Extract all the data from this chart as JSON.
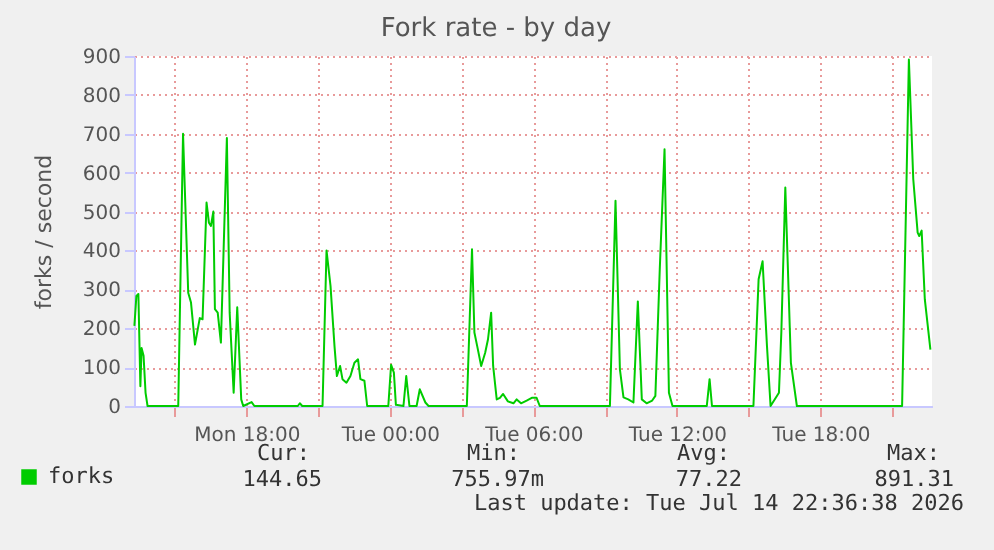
{
  "chart_data": {
    "type": "line",
    "title": "Fork rate - by day",
    "ylabel": "forks / second",
    "xlim": [
      "2026-07-13T13:18",
      "2026-07-14T22:40"
    ],
    "xticks": [
      {
        "value": "2026-07-13T15:00",
        "label": null
      },
      {
        "value": "2026-07-13T18:00",
        "label": "Mon 18:00"
      },
      {
        "value": "2026-07-13T21:00",
        "label": null
      },
      {
        "value": "2026-07-14T00:00",
        "label": "Tue 00:00"
      },
      {
        "value": "2026-07-14T03:00",
        "label": null
      },
      {
        "value": "2026-07-14T06:00",
        "label": "Tue 06:00"
      },
      {
        "value": "2026-07-14T09:00",
        "label": null
      },
      {
        "value": "2026-07-14T12:00",
        "label": "Tue 12:00"
      },
      {
        "value": "2026-07-14T15:00",
        "label": null
      },
      {
        "value": "2026-07-14T18:00",
        "label": "Tue 18:00"
      },
      {
        "value": "2026-07-14T21:00",
        "label": null
      }
    ],
    "ylim": [
      0,
      900
    ],
    "yticks": [
      0,
      100,
      200,
      300,
      400,
      500,
      600,
      700,
      800,
      900
    ],
    "grid": true,
    "legend": "bottom left",
    "marker": "none",
    "line_style": "solid",
    "series": [
      {
        "name": "forks",
        "color": "#00cc00",
        "x": [
          "2026-07-13T13:19",
          "2026-07-13T13:24",
          "2026-07-13T13:29",
          "2026-07-13T13:34",
          "2026-07-13T13:37",
          "2026-07-13T13:42",
          "2026-07-13T13:47",
          "2026-07-13T13:52",
          "2026-07-13T15:09",
          "2026-07-13T15:21",
          "2026-07-13T15:34",
          "2026-07-13T15:41",
          "2026-07-13T15:51",
          "2026-07-13T16:03",
          "2026-07-13T16:10",
          "2026-07-13T16:20",
          "2026-07-13T16:26",
          "2026-07-13T16:31",
          "2026-07-13T16:37",
          "2026-07-13T16:41",
          "2026-07-13T16:48",
          "2026-07-13T16:56",
          "2026-07-13T17:11",
          "2026-07-13T17:18",
          "2026-07-13T17:28",
          "2026-07-13T17:37",
          "2026-07-13T17:47",
          "2026-07-13T17:52",
          "2026-07-13T18:13",
          "2026-07-13T18:20",
          "2026-07-13T20:09",
          "2026-07-13T20:14",
          "2026-07-13T20:20",
          "2026-07-13T21:11",
          "2026-07-13T21:21",
          "2026-07-13T21:31",
          "2026-07-13T21:41",
          "2026-07-13T21:47",
          "2026-07-13T21:55",
          "2026-07-13T22:01",
          "2026-07-13T22:11",
          "2026-07-13T22:21",
          "2026-07-13T22:31",
          "2026-07-13T22:40",
          "2026-07-13T22:46",
          "2026-07-13T22:56",
          "2026-07-13T23:03",
          "2026-07-13T23:56",
          "2026-07-14T00:03",
          "2026-07-14T00:10",
          "2026-07-14T00:15",
          "2026-07-14T00:34",
          "2026-07-14T00:41",
          "2026-07-14T00:49",
          "2026-07-14T01:07",
          "2026-07-14T01:15",
          "2026-07-14T01:29",
          "2026-07-14T01:37",
          "2026-07-14T03:13",
          "2026-07-14T03:26",
          "2026-07-14T03:32",
          "2026-07-14T03:39",
          "2026-07-14T03:49",
          "2026-07-14T03:59",
          "2026-07-14T04:06",
          "2026-07-14T04:14",
          "2026-07-14T04:19",
          "2026-07-14T04:28",
          "2026-07-14T04:36",
          "2026-07-14T04:44",
          "2026-07-14T04:56",
          "2026-07-14T05:10",
          "2026-07-14T05:18",
          "2026-07-14T05:29",
          "2026-07-14T05:43",
          "2026-07-14T05:56",
          "2026-07-14T06:08",
          "2026-07-14T06:16",
          "2026-07-14T09:12",
          "2026-07-14T09:26",
          "2026-07-14T09:37",
          "2026-07-14T09:46",
          "2026-07-14T09:58",
          "2026-07-14T10:11",
          "2026-07-14T10:22",
          "2026-07-14T10:32",
          "2026-07-14T10:44",
          "2026-07-14T10:58",
          "2026-07-14T11:06",
          "2026-07-14T11:17",
          "2026-07-14T11:29",
          "2026-07-14T11:40",
          "2026-07-14T11:49",
          "2026-07-14T13:15",
          "2026-07-14T13:22",
          "2026-07-14T13:28",
          "2026-07-14T15:12",
          "2026-07-14T15:25",
          "2026-07-14T15:35",
          "2026-07-14T15:46",
          "2026-07-14T15:55",
          "2026-07-14T16:16",
          "2026-07-14T16:22",
          "2026-07-14T16:32",
          "2026-07-14T16:46",
          "2026-07-14T17:01",
          "2026-07-14T21:25",
          "2026-07-14T21:42",
          "2026-07-14T21:53",
          "2026-07-14T22:04",
          "2026-07-14T22:08",
          "2026-07-14T22:14",
          "2026-07-14T22:22",
          "2026-07-14T22:36"
        ],
        "values": [
          206,
          283,
          288,
          51,
          149,
          129,
          34,
          0,
          0,
          700,
          291,
          266,
          158,
          226,
          223,
          523,
          471,
          463,
          500,
          249,
          240,
          163,
          689,
          240,
          34,
          254,
          17,
          0,
          10,
          0,
          0,
          7,
          0,
          0,
          400,
          309,
          154,
          77,
          103,
          69,
          60,
          77,
          111,
          120,
          69,
          65,
          0,
          0,
          106,
          86,
          3,
          0,
          77,
          0,
          0,
          43,
          9,
          0,
          0,
          403,
          189,
          154,
          103,
          137,
          171,
          240,
          103,
          17,
          21,
          31,
          12,
          7,
          17,
          7,
          14,
          21,
          21,
          0,
          0,
          528,
          94,
          22,
          17,
          9,
          269,
          17,
          7,
          14,
          26,
          351,
          660,
          34,
          0,
          0,
          69,
          0,
          0,
          326,
          372,
          154,
          0,
          34,
          189,
          562,
          111,
          0,
          0,
          891,
          583,
          446,
          437,
          451,
          274,
          145
        ]
      }
    ],
    "annotations": [
      "Cur:",
      "144.65",
      "Min:",
      "755.97m",
      "Avg:",
      "77.22",
      "Max:",
      "891.31",
      "Last update: Tue Jul 14 22:36:38 2026"
    ]
  }
}
